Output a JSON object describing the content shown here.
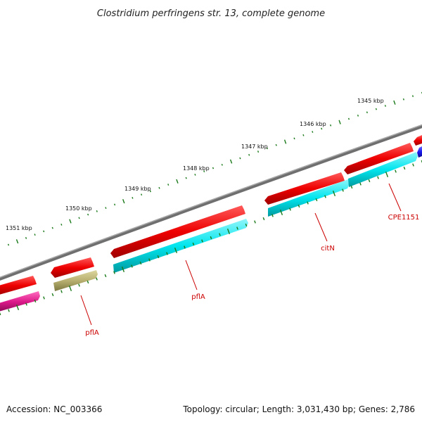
{
  "title": "Clostridium perfringens str. 13, complete genome",
  "footer": {
    "accession": "Accession: NC_003366",
    "summary": "Topology: circular; Length: 3,031,430 bp; Genes: 2,786"
  },
  "scale_labels": [
    "1351 kbp",
    "1350 kbp",
    "1349 kbp",
    "1348 kbp",
    "1347 kbp",
    "1346 kbp",
    "1345 kbp"
  ],
  "gene_labels": [
    "pflA",
    "pflA",
    "citN",
    "CPE1151"
  ],
  "colors": {
    "backbone": "#7a7a7a",
    "forward": "#ee0000",
    "reverse": "#00e5ee",
    "olive": "#b8b070",
    "magenta": "#dd1a8a",
    "blue": "#1a1aee",
    "tick": "#1a7a1a",
    "label": "#cc0000"
  }
}
